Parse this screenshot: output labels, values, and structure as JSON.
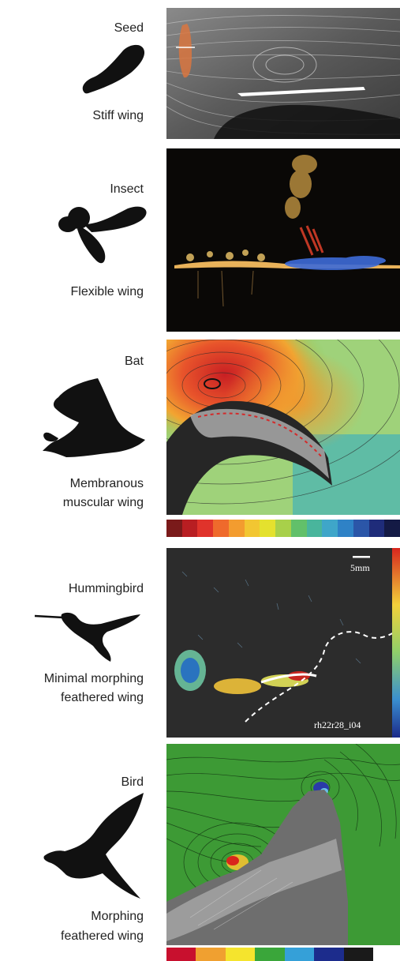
{
  "rows": [
    {
      "name": "Seed",
      "wing": "Stiff wing"
    },
    {
      "name": "Insect",
      "wing": "Flexible wing"
    },
    {
      "name": "Bat",
      "wing_line1": "Membranous",
      "wing_line2": "muscular wing"
    },
    {
      "name": "Hummingbird",
      "wing_line1": "Minimal morphing",
      "wing_line2": "feathered wing"
    },
    {
      "name": "Bird",
      "wing_line1": "Morphing",
      "wing_line2": "feathered wing"
    }
  ],
  "panel_text": {
    "scale_bar": "5mm",
    "frame_id": "rh22r28_i04"
  },
  "colors": {
    "bat_colorbar": [
      "#7a1a1a",
      "#b81e22",
      "#e0332b",
      "#ef6a2c",
      "#f39c2f",
      "#f2c632",
      "#e4e12e",
      "#a8d04a",
      "#62c06a",
      "#49b59c",
      "#3fa6c9",
      "#2f82c6",
      "#2b56a8",
      "#1f2c7a",
      "#141a45"
    ],
    "bird_colorbar": [
      "#c8102e",
      "#f0a030",
      "#f5e42d",
      "#3aa63a",
      "#35a0d8",
      "#1c2c8c",
      "#1a1a1a"
    ]
  }
}
